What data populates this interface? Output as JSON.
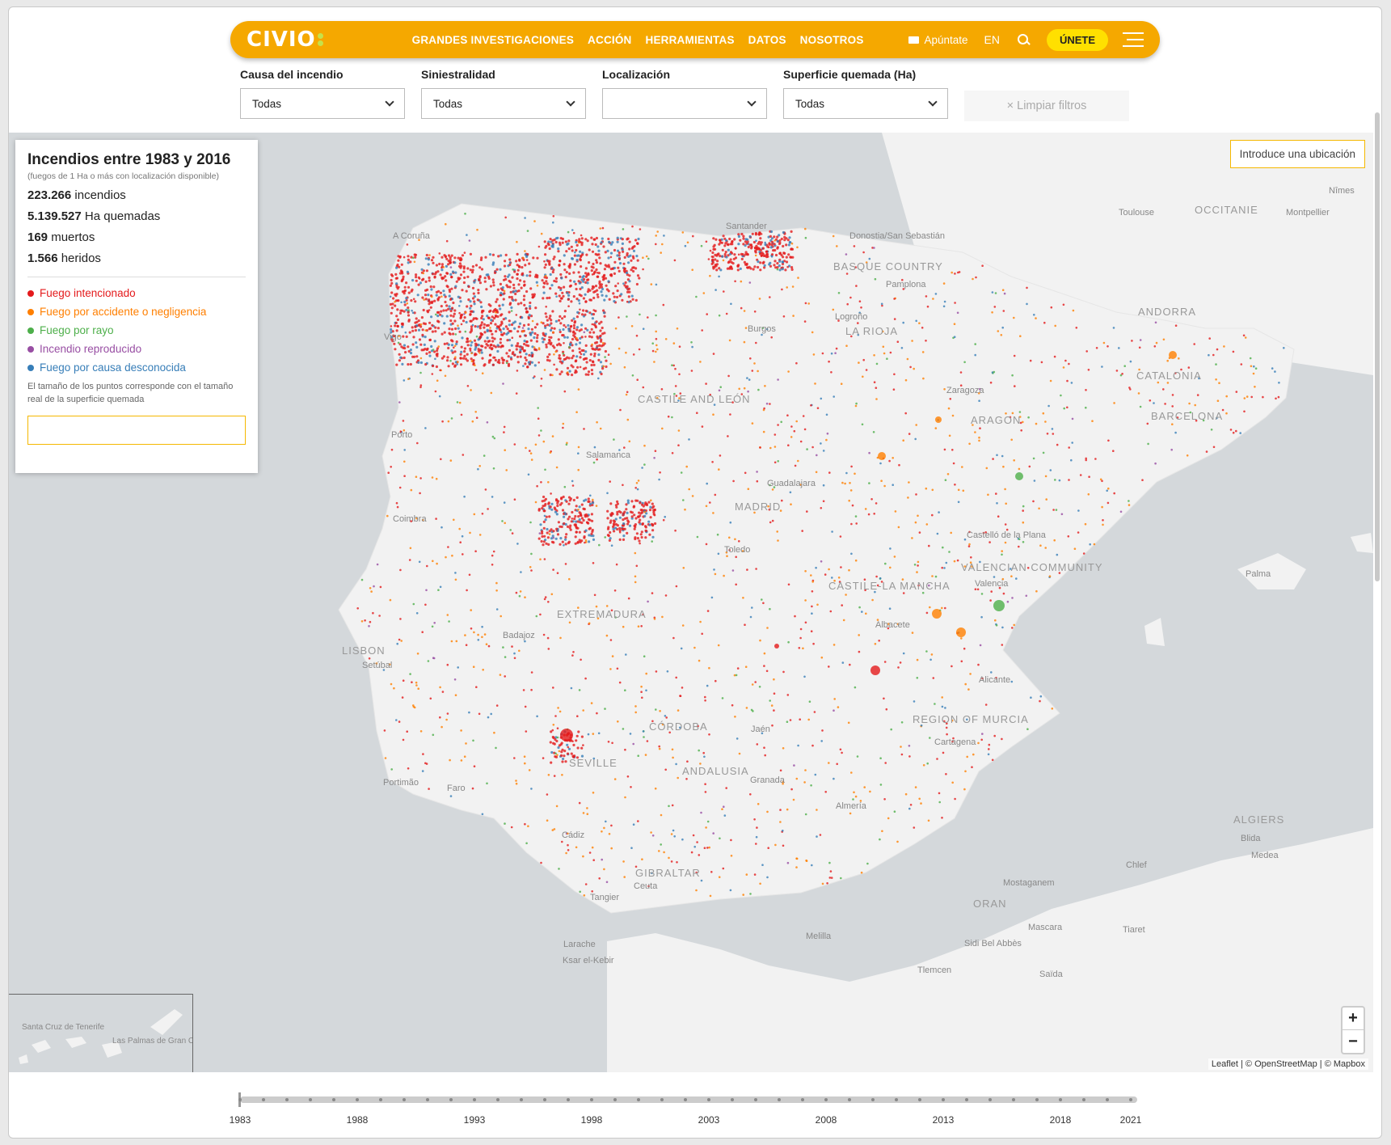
{
  "nav": {
    "logo": "CIVIO",
    "links": [
      "GRANDES INVESTIGACIONES",
      "ACCIÓN",
      "HERRAMIENTAS",
      "DATOS",
      "NOSOTROS"
    ],
    "apuntate": "Apúntate",
    "lang": "EN",
    "join": "ÚNETE"
  },
  "filters": [
    {
      "label": "Causa del incendio",
      "value": "Todas"
    },
    {
      "label": "Siniestralidad",
      "value": "Todas"
    },
    {
      "label": "Localización",
      "value": ""
    },
    {
      "label": "Superficie quemada (Ha)",
      "value": "Todas"
    }
  ],
  "clear_filters": "× Limpiar filtros",
  "panel": {
    "title": "Incendios entre 1983 y 2016",
    "subtitle": "(fuegos de 1 Ha o más con localización disponible)",
    "stats": [
      {
        "num": "223.266",
        "label": "incendios"
      },
      {
        "num": "5.139.527",
        "label": "Ha quemadas"
      },
      {
        "num": "169",
        "label": "muertos"
      },
      {
        "num": "1.566",
        "label": "heridos"
      }
    ],
    "legend": [
      {
        "label": "Fuego intencionado",
        "color": "#e41a1c"
      },
      {
        "label": "Fuego por accidente o negligencia",
        "color": "#ff7f00"
      },
      {
        "label": "Fuego por rayo",
        "color": "#4daf4a"
      },
      {
        "label": "Incendio reproducido",
        "color": "#984ea3"
      },
      {
        "label": "Fuego por causa desconocida",
        "color": "#377eb8"
      }
    ],
    "note": "El tamaño de los puntos corresponde con el tamaño real de la superficie quemada"
  },
  "location_button": "Introduce una ubicación",
  "map_labels": {
    "cities": [
      "A Coruña",
      "Santander",
      "Donostia/San Sebastián",
      "Pamplona",
      "Logroño",
      "Burgos",
      "Vigo",
      "Zaragoza",
      "Salamanca",
      "Porto",
      "Guadalajara",
      "Toledo",
      "Coimbra",
      "Castelló de la Plana",
      "Valencia",
      "Albacete",
      "Badajoz",
      "Setúbal",
      "Alicante",
      "Cartagena",
      "Jaén",
      "Granada",
      "Almería",
      "Portimão",
      "Faro",
      "Cádiz",
      "Ceuta",
      "Tangier",
      "Larache",
      "Ksar el-Kebir",
      "Melilla",
      "Toulouse",
      "Montpellier",
      "Nîmes",
      "Mostaganem",
      "Chlef",
      "Blida",
      "Medea",
      "Mascara",
      "Tiaret",
      "Sidi Bel Abbès",
      "Tlemcen",
      "Saïda",
      "Palma"
    ],
    "regions": [
      "BASQUE COUNTRY",
      "LA RIOJA",
      "CASTILE AND LEÓN",
      "ARAGON",
      "CATALONIA",
      "BARCELONA",
      "ANDORRA",
      "OCCITANIE",
      "MADRID",
      "CASTILE-LA MANCHA",
      "VALENCIAN COMMUNITY",
      "EXTREMADURA",
      "REGION OF MURCIA",
      "CÓRDOBA",
      "SEVILLE",
      "ANDALUSIA",
      "GIBRALTAR",
      "LISBON",
      "ORAN",
      "ALGIERS"
    ],
    "inset": [
      "Santa Cruz de Tenerife",
      "Las Palmas de Gran Canaria"
    ]
  },
  "zoom_in": "+",
  "zoom_out": "−",
  "attribution": "Leaflet | © OpenStreetMap | © Mapbox",
  "timeline": {
    "years": [
      "1983",
      "1988",
      "1993",
      "1998",
      "2003",
      "2008",
      "2013",
      "2018",
      "2021"
    ]
  }
}
